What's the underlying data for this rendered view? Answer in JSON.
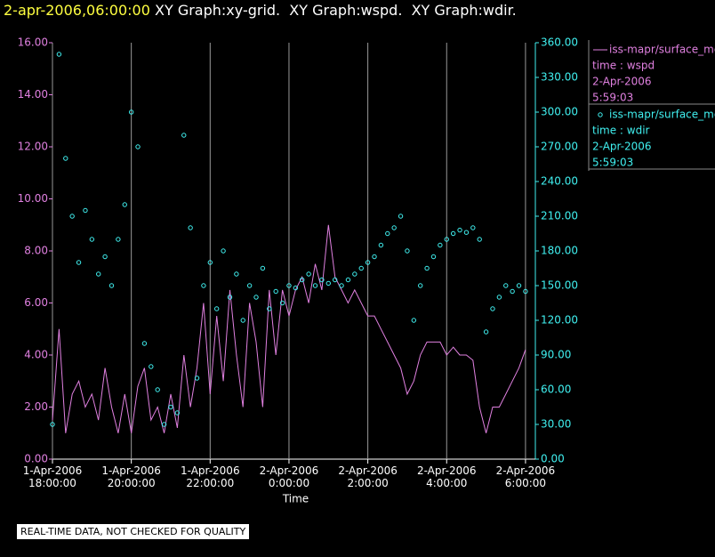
{
  "header": {
    "time": "2-apr-2006,06:00:00",
    "title": " XY Graph:xy-grid.  XY Graph:wspd.  XY Graph:wdir."
  },
  "note": "REAL-TIME DATA, NOT CHECKED FOR QUALITY",
  "chart_data": {
    "type": "line",
    "xlabel": "Time",
    "grid": true,
    "xlim": [
      "2006-04-01T18:00:00",
      "2006-04-02T06:15:00"
    ],
    "xticks": [
      {
        "value": "2006-04-01T18:00:00",
        "label": "1-Apr-2006\n18:00:00"
      },
      {
        "value": "2006-04-01T20:00:00",
        "label": "1-Apr-2006\n20:00:00"
      },
      {
        "value": "2006-04-01T22:00:00",
        "label": "1-Apr-2006\n22:00:00"
      },
      {
        "value": "2006-04-02T00:00:00",
        "label": "2-Apr-2006\n0:00:00"
      },
      {
        "value": "2006-04-02T02:00:00",
        "label": "2-Apr-2006\n2:00:00"
      },
      {
        "value": "2006-04-02T04:00:00",
        "label": "2-Apr-2006\n4:00:00"
      },
      {
        "value": "2006-04-02T06:00:00",
        "label": "2-Apr-2006\n6:00:00"
      }
    ],
    "ylim": [
      0,
      16
    ],
    "yticks": [
      {
        "value": 0,
        "label": "0.00"
      },
      {
        "value": 2,
        "label": "2.00"
      },
      {
        "value": 4,
        "label": "4.00"
      },
      {
        "value": 6,
        "label": "6.00"
      },
      {
        "value": 8,
        "label": "8.00"
      },
      {
        "value": 10,
        "label": "10.00"
      },
      {
        "value": 12,
        "label": "12.00"
      },
      {
        "value": 14,
        "label": "14.00"
      },
      {
        "value": 16,
        "label": "16.00"
      }
    ],
    "y2lim": [
      0,
      360
    ],
    "y2ticks": [
      {
        "value": 0,
        "label": "0.00"
      },
      {
        "value": 30,
        "label": "30.00"
      },
      {
        "value": 60,
        "label": "60.00"
      },
      {
        "value": 90,
        "label": "90.00"
      },
      {
        "value": 120,
        "label": "120.00"
      },
      {
        "value": 150,
        "label": "150.00"
      },
      {
        "value": 180,
        "label": "180.00"
      },
      {
        "value": 210,
        "label": "210.00"
      },
      {
        "value": 240,
        "label": "240.00"
      },
      {
        "value": 270,
        "label": "270.00"
      },
      {
        "value": 300,
        "label": "300.00"
      },
      {
        "value": 330,
        "label": "330.00"
      },
      {
        "value": 360,
        "label": "360.00"
      }
    ],
    "x": [
      "2006-04-01T18:00:00",
      "2006-04-01T18:10:00",
      "2006-04-01T18:20:00",
      "2006-04-01T18:30:00",
      "2006-04-01T18:40:00",
      "2006-04-01T18:50:00",
      "2006-04-01T19:00:00",
      "2006-04-01T19:10:00",
      "2006-04-01T19:20:00",
      "2006-04-01T19:30:00",
      "2006-04-01T19:40:00",
      "2006-04-01T19:50:00",
      "2006-04-01T20:00:00",
      "2006-04-01T20:10:00",
      "2006-04-01T20:20:00",
      "2006-04-01T20:30:00",
      "2006-04-01T20:40:00",
      "2006-04-01T20:50:00",
      "2006-04-01T21:00:00",
      "2006-04-01T21:10:00",
      "2006-04-01T21:20:00",
      "2006-04-01T21:30:00",
      "2006-04-01T21:40:00",
      "2006-04-01T21:50:00",
      "2006-04-01T22:00:00",
      "2006-04-01T22:10:00",
      "2006-04-01T22:20:00",
      "2006-04-01T22:30:00",
      "2006-04-01T22:40:00",
      "2006-04-01T22:50:00",
      "2006-04-01T23:00:00",
      "2006-04-01T23:10:00",
      "2006-04-01T23:20:00",
      "2006-04-01T23:30:00",
      "2006-04-01T23:40:00",
      "2006-04-01T23:50:00",
      "2006-04-02T00:00:00",
      "2006-04-02T00:10:00",
      "2006-04-02T00:20:00",
      "2006-04-02T00:30:00",
      "2006-04-02T00:40:00",
      "2006-04-02T00:50:00",
      "2006-04-02T01:00:00",
      "2006-04-02T01:10:00",
      "2006-04-02T01:20:00",
      "2006-04-02T01:30:00",
      "2006-04-02T01:40:00",
      "2006-04-02T01:50:00",
      "2006-04-02T02:00:00",
      "2006-04-02T02:10:00",
      "2006-04-02T02:20:00",
      "2006-04-02T02:30:00",
      "2006-04-02T02:40:00",
      "2006-04-02T02:50:00",
      "2006-04-02T03:00:00",
      "2006-04-02T03:10:00",
      "2006-04-02T03:20:00",
      "2006-04-02T03:30:00",
      "2006-04-02T03:40:00",
      "2006-04-02T03:50:00",
      "2006-04-02T04:00:00",
      "2006-04-02T04:10:00",
      "2006-04-02T04:20:00",
      "2006-04-02T04:30:00",
      "2006-04-02T04:40:00",
      "2006-04-02T04:50:00",
      "2006-04-02T05:00:00",
      "2006-04-02T05:10:00",
      "2006-04-02T05:20:00",
      "2006-04-02T05:30:00",
      "2006-04-02T05:40:00",
      "2006-04-02T05:50:00",
      "2006-04-02T06:00:00"
    ],
    "series": [
      {
        "name": "iss-mapr/surface_met",
        "legend_lines": [
          "time : wspd",
          "2-Apr-2006",
          "5:59:03"
        ],
        "type": "line",
        "color": "#e080e0",
        "values": [
          1.5,
          5.0,
          1.0,
          2.5,
          3.0,
          2.0,
          2.5,
          1.5,
          3.5,
          2.0,
          1.0,
          2.5,
          1.0,
          2.8,
          3.5,
          1.5,
          2.0,
          1.0,
          2.5,
          1.2,
          4.0,
          2.0,
          3.5,
          6.0,
          2.5,
          5.5,
          3.0,
          6.5,
          4.0,
          2.0,
          6.0,
          4.5,
          2.0,
          6.5,
          4.0,
          6.5,
          5.5,
          6.5,
          7.0,
          6.0,
          7.5,
          6.5,
          9.0,
          7.0,
          6.5,
          6.0,
          6.5,
          6.0,
          5.5,
          5.5,
          5.0,
          4.5,
          4.0,
          3.5,
          2.5,
          3.0,
          4.0,
          4.5,
          4.5,
          4.5,
          4.0,
          4.3,
          4.0,
          4.0,
          3.8,
          2.0,
          1.0,
          2.0,
          2.0,
          2.5,
          3.0,
          3.5,
          4.2
        ]
      },
      {
        "name": "iss-mapr/surface_met",
        "legend_lines": [
          "time : wdir",
          "2-Apr-2006",
          "5:59:03"
        ],
        "type": "scatter",
        "axis": "y2",
        "color": "#40f0f0",
        "values": [
          30,
          350,
          260,
          210,
          170,
          215,
          190,
          160,
          175,
          150,
          190,
          220,
          300,
          270,
          100,
          80,
          60,
          30,
          45,
          40,
          280,
          200,
          70,
          150,
          170,
          130,
          180,
          140,
          160,
          120,
          150,
          140,
          165,
          130,
          145,
          135,
          150,
          148,
          155,
          160,
          150,
          155,
          152,
          155,
          150,
          155,
          160,
          165,
          170,
          175,
          185,
          195,
          200,
          210,
          180,
          120,
          150,
          165,
          175,
          185,
          190,
          195,
          198,
          196,
          200,
          190,
          110,
          130,
          140,
          150,
          145,
          150,
          145
        ]
      }
    ]
  }
}
